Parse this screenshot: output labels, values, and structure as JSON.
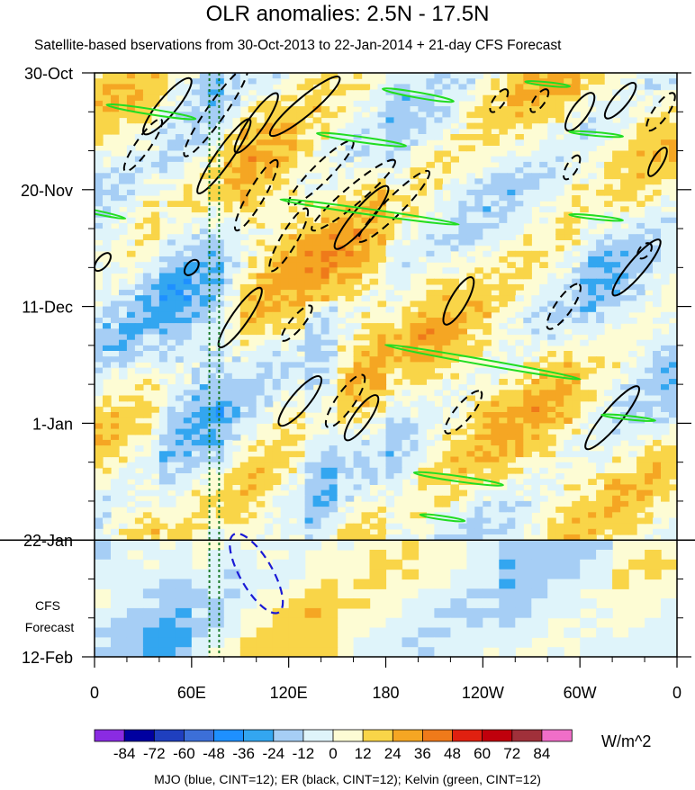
{
  "chart_data": {
    "type": "heatmap",
    "title": "OLR anomalies: 2.5N - 17.5N",
    "subtitle": "Satellite-based bservations from 30-Oct-2013 to 22-Jan-2014 + 21-day CFS Forecast",
    "x_ticks": [
      "0",
      "60E",
      "120E",
      "180",
      "120W",
      "60W",
      "0"
    ],
    "x_range_deg_east": [
      0,
      360
    ],
    "y_ticks": [
      "30-Oct",
      "20-Nov",
      "11-Dec",
      "1-Jan",
      "22-Jan",
      "12-Feb"
    ],
    "y_range": [
      "30-Oct-2013",
      "12-Feb-2014"
    ],
    "observation_end": "22-Jan",
    "forecast_label_line1": "CFS",
    "forecast_label_line2": "Forecast",
    "colorbar": {
      "labels": [
        "-84",
        "-72",
        "-60",
        "-48",
        "-36",
        "-24",
        "-12",
        "0",
        "12",
        "24",
        "36",
        "48",
        "60",
        "72",
        "84"
      ],
      "colors": [
        "#8a2be2",
        "#0000a0",
        "#1f3fbf",
        "#3c6fd8",
        "#1e90ff",
        "#33a6f0",
        "#a6cef5",
        "#dff4fa",
        "#fdfcd4",
        "#f9d548",
        "#f5a623",
        "#ef7a1a",
        "#e02010",
        "#c0000c",
        "#a0303a",
        "#f06ec8"
      ],
      "units": "W/m^2"
    },
    "contours_legend": "MJO (blue, CINT=12); ER (black, CINT=12); Kelvin (green, CINT=12)",
    "series_colors": {
      "MJO": "#1a1ad6",
      "ER": "#000000",
      "Kelvin": "#22dd22"
    },
    "reference_lines_deg_east": [
      71,
      77
    ]
  }
}
